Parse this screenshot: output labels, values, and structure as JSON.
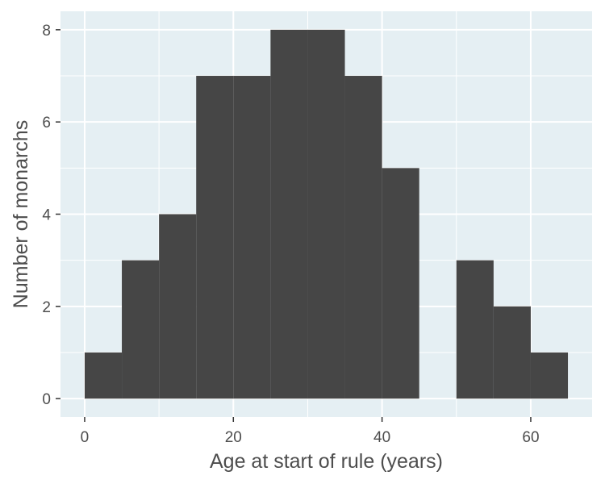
{
  "chart_data": {
    "type": "bar",
    "subtype": "histogram",
    "title": "",
    "xlabel": "Age at start of rule (years)",
    "ylabel": "Number of monarchs",
    "bins": [
      {
        "start": 0,
        "end": 5,
        "count": 1
      },
      {
        "start": 5,
        "end": 10,
        "count": 3
      },
      {
        "start": 10,
        "end": 15,
        "count": 4
      },
      {
        "start": 15,
        "end": 20,
        "count": 7
      },
      {
        "start": 20,
        "end": 25,
        "count": 7
      },
      {
        "start": 25,
        "end": 30,
        "count": 8
      },
      {
        "start": 30,
        "end": 35,
        "count": 8
      },
      {
        "start": 35,
        "end": 40,
        "count": 7
      },
      {
        "start": 40,
        "end": 45,
        "count": 5
      },
      {
        "start": 45,
        "end": 50,
        "count": 0
      },
      {
        "start": 50,
        "end": 55,
        "count": 3
      },
      {
        "start": 55,
        "end": 60,
        "count": 2
      },
      {
        "start": 60,
        "end": 65,
        "count": 1
      }
    ],
    "xlim": [
      -3.25,
      68.25
    ],
    "ylim": [
      -0.4,
      8.4
    ],
    "xticks": [
      0,
      20,
      40,
      60
    ],
    "xtick_labels": [
      "0",
      "20",
      "40",
      "60"
    ],
    "yticks": [
      0,
      2,
      4,
      6,
      8
    ],
    "ytick_labels": [
      "0",
      "2",
      "4",
      "6",
      "8"
    ],
    "x_minor_gridlines": [
      10,
      30,
      50
    ],
    "y_minor_gridlines": [
      1,
      3,
      5,
      7
    ],
    "grid": true,
    "legend": "none",
    "colors": {
      "bar_fill": "#464646",
      "panel_background": "#e5eff3",
      "gridline": "#ffffff",
      "text": "#4d4d4d",
      "tick": "#333333"
    }
  }
}
